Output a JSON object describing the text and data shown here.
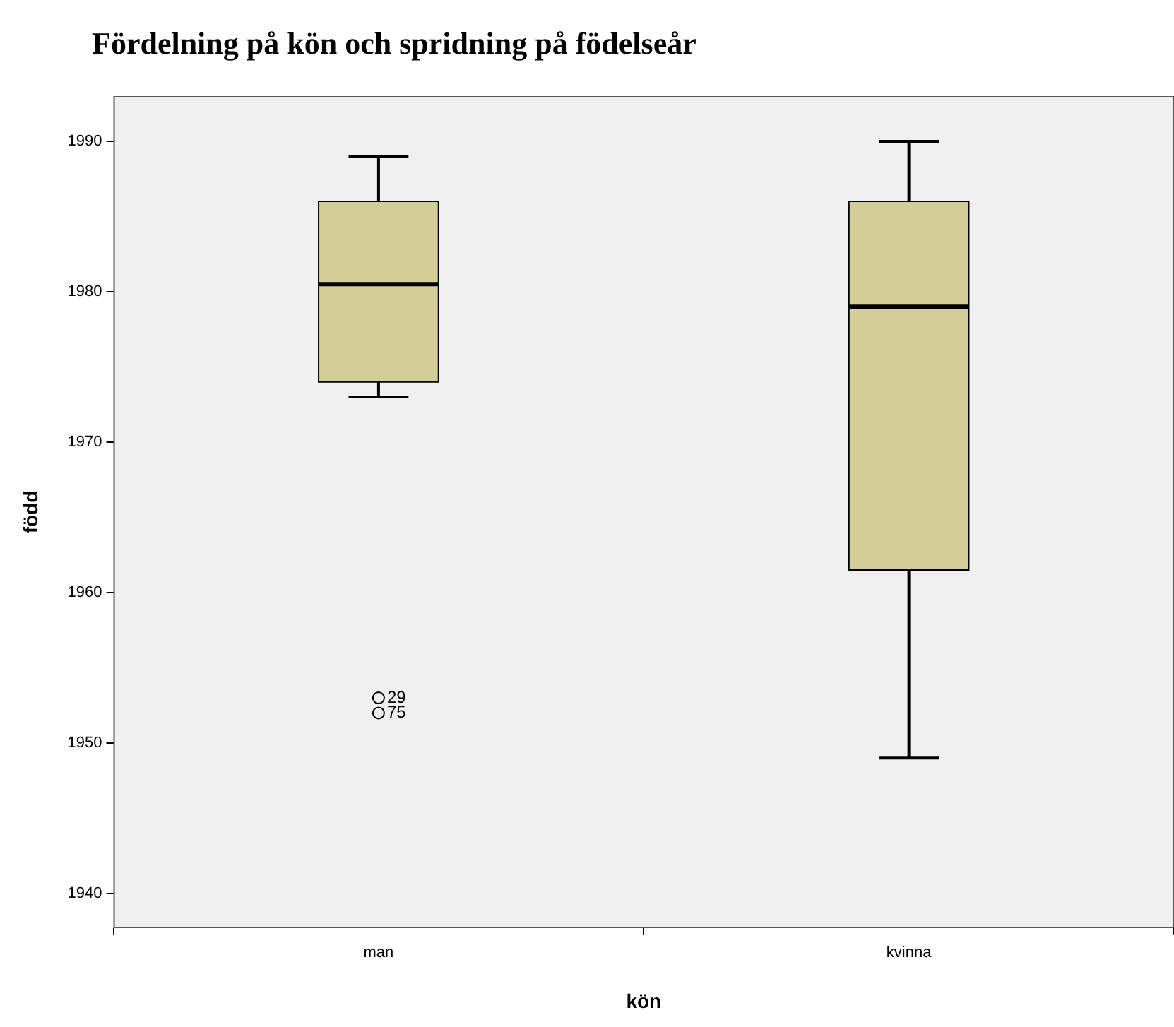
{
  "chart_data": {
    "type": "box",
    "title": "Fördelning på kön och spridning på födelseår",
    "xlabel": "kön",
    "ylabel": "född",
    "categories": [
      "man",
      "kvinna"
    ],
    "boxes": [
      {
        "low": 1973,
        "q1": 1974,
        "median": 1980.5,
        "q3": 1986,
        "high": 1989,
        "outliers": [
          1953,
          1952
        ]
      },
      {
        "low": 1949,
        "q1": 1961.5,
        "median": 1979,
        "q3": 1986,
        "high": 1990
      }
    ],
    "color": "#d3ce97",
    "ylim": [
      1937.7,
      1993
    ],
    "yticks": [
      1940,
      1950,
      1960,
      1970,
      1980,
      1990
    ],
    "grid": false,
    "legend": false,
    "annotations": [
      "29",
      "75"
    ]
  }
}
